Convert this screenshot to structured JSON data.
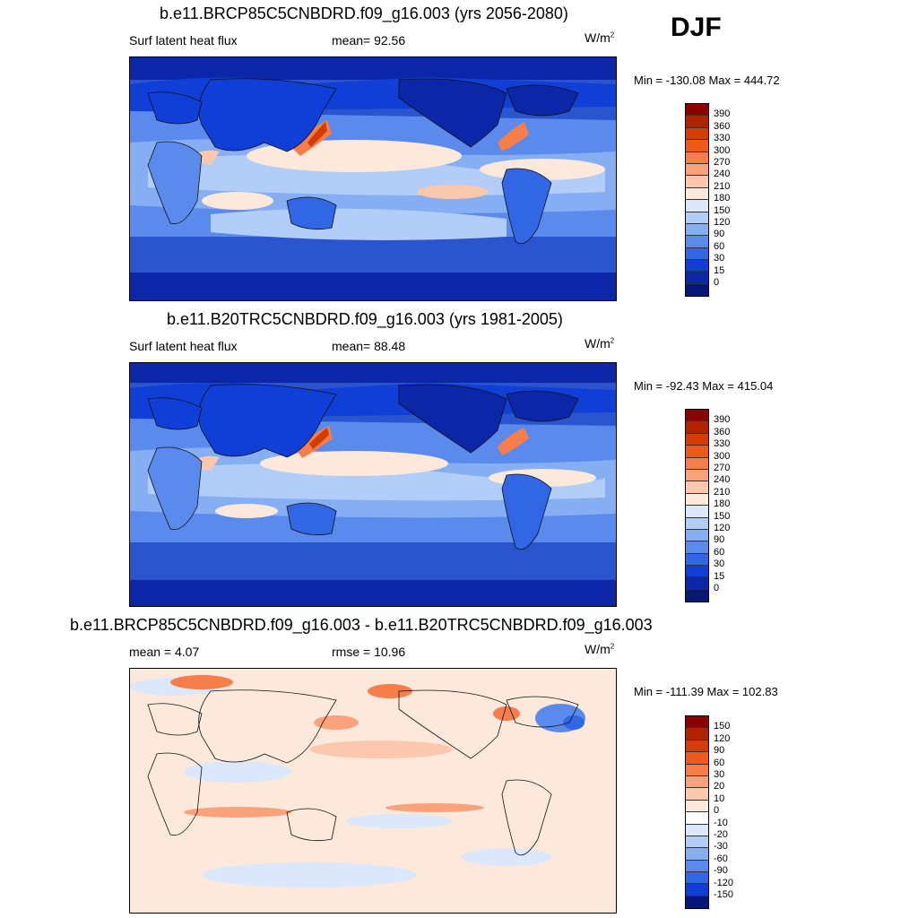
{
  "season": "DJF",
  "panels": [
    {
      "title": "b.e11.BRCP85C5CNBDRD.f09_g16.003 (yrs 2056-2080)",
      "left_label": "Surf latent heat flux",
      "center_label": "mean=  92.56",
      "units": "W/m",
      "units_sup": "2",
      "minmax": "Min = -130.08 Max = 444.72",
      "levels": [
        "390",
        "360",
        "330",
        "300",
        "270",
        "240",
        "210",
        "180",
        "150",
        "120",
        "90",
        "60",
        "30",
        "15",
        "0"
      ],
      "colors": [
        "#8b0000",
        "#b22200",
        "#d43c00",
        "#ee5a1a",
        "#f57e4a",
        "#f9a27b",
        "#fcc8ad",
        "#fde9dc",
        "#dbe8fc",
        "#b2cdf8",
        "#86aef2",
        "#5a8aeb",
        "#3166e4",
        "#0f3fd6",
        "#0b27a8",
        "#061778"
      ],
      "mean_value": 92.56
    },
    {
      "title": "b.e11.B20TRC5CNBDRD.f09_g16.003 (yrs 1981-2005)",
      "left_label": "Surf latent heat flux",
      "center_label": "mean=  88.48",
      "units": "W/m",
      "units_sup": "2",
      "minmax": "Min = -92.43 Max = 415.04",
      "levels": [
        "390",
        "360",
        "330",
        "300",
        "270",
        "240",
        "210",
        "180",
        "150",
        "120",
        "90",
        "60",
        "30",
        "15",
        "0"
      ],
      "colors": [
        "#8b0000",
        "#b22200",
        "#d43c00",
        "#ee5a1a",
        "#f57e4a",
        "#f9a27b",
        "#fcc8ad",
        "#fde9dc",
        "#dbe8fc",
        "#b2cdf8",
        "#86aef2",
        "#5a8aeb",
        "#3166e4",
        "#0f3fd6",
        "#0b27a8",
        "#061778"
      ],
      "mean_value": 88.48
    },
    {
      "title": "b.e11.BRCP85C5CNBDRD.f09_g16.003 - b.e11.B20TRC5CNBDRD.f09_g16.003",
      "left_label": "mean =   4.07",
      "center_label": "rmse =  10.96",
      "units": "W/m",
      "units_sup": "2",
      "minmax": "Min = -111.39 Max = 102.83",
      "levels": [
        "150",
        "120",
        "90",
        "60",
        "30",
        "20",
        "10",
        "0",
        "-10",
        "-20",
        "-30",
        "-60",
        "-90",
        "-120",
        "-150"
      ],
      "colors": [
        "#8b0000",
        "#b22200",
        "#d43c00",
        "#ee5a1a",
        "#f57e4a",
        "#f9a27b",
        "#fcc8ad",
        "#fde9dc",
        "#ffffff",
        "#dbe8fc",
        "#b2cdf8",
        "#86aef2",
        "#5a8aeb",
        "#3166e4",
        "#0f3fd6",
        "#061778"
      ],
      "mean_value": 4.07
    }
  ]
}
